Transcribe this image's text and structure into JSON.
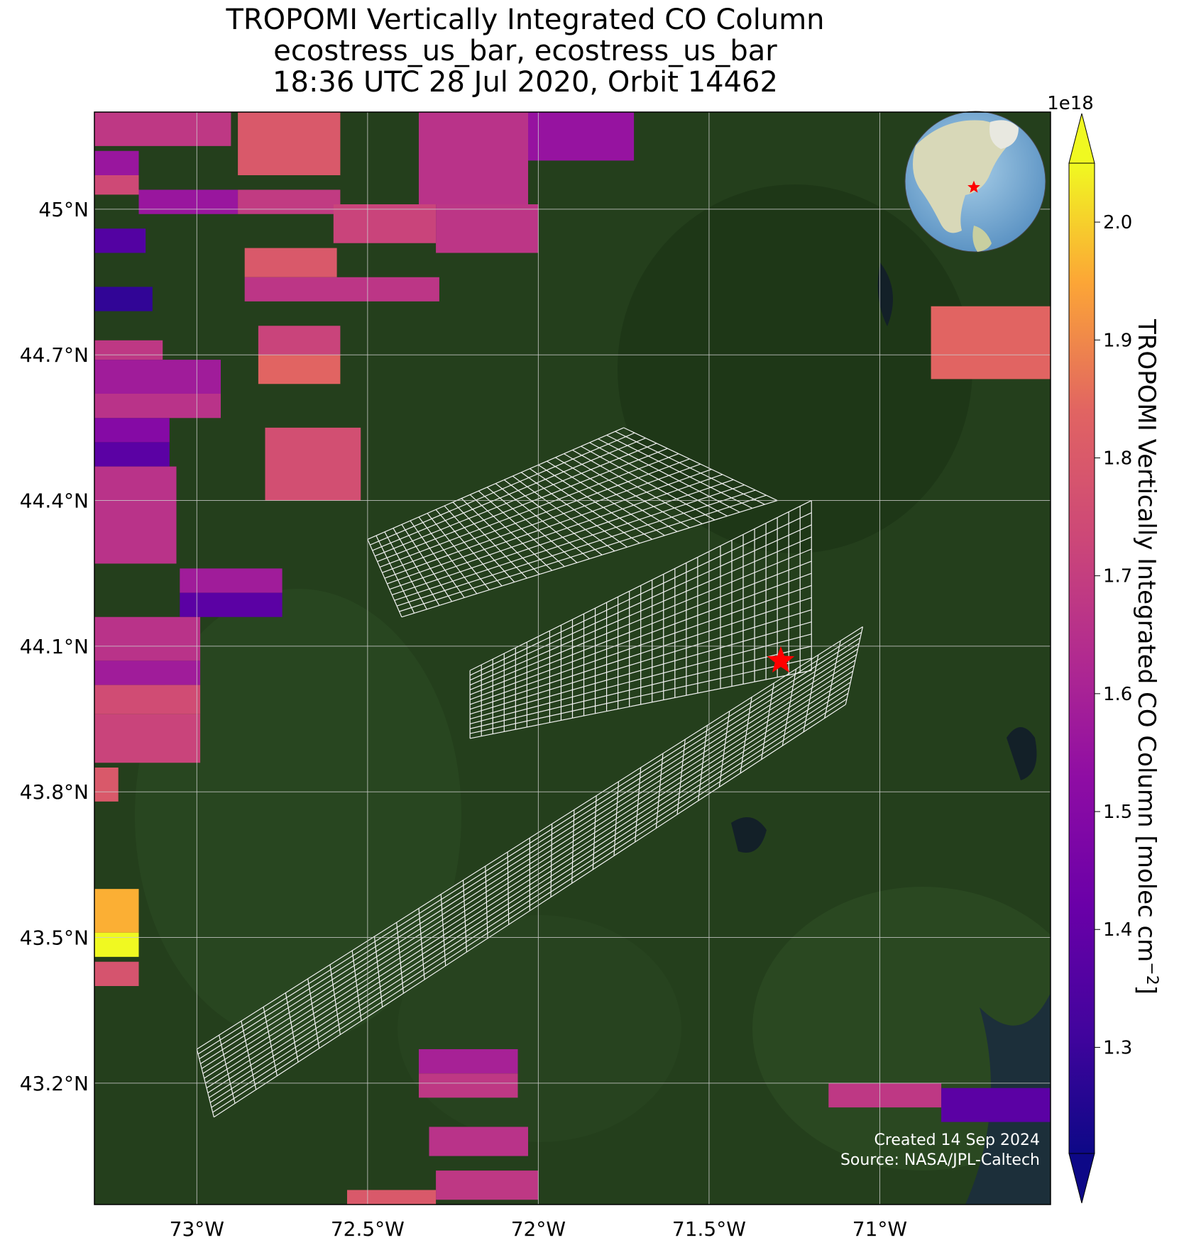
{
  "title": {
    "line1": "TROPOMI Vertically Integrated CO Column",
    "line2": "ecostress_us_bar, ecostress_us_bar",
    "line3": "18:36 UTC 28 Jul 2020, Orbit 14462"
  },
  "map": {
    "lon_range": [
      -73.3,
      -70.5
    ],
    "lat_range": [
      42.95,
      45.2
    ],
    "lon_ticks": [
      {
        "value": -73.0,
        "label": "73°W"
      },
      {
        "value": -72.5,
        "label": "72.5°W"
      },
      {
        "value": -72.0,
        "label": "72°W"
      },
      {
        "value": -71.5,
        "label": "71.5°W"
      },
      {
        "value": -71.0,
        "label": "71°W"
      }
    ],
    "lat_ticks": [
      {
        "value": 45.0,
        "label": "45°N"
      },
      {
        "value": 44.7,
        "label": "44.7°N"
      },
      {
        "value": 44.4,
        "label": "44.4°N"
      },
      {
        "value": 44.1,
        "label": "44.1°N"
      },
      {
        "value": 43.8,
        "label": "43.8°N"
      },
      {
        "value": 43.5,
        "label": "43.5°N"
      },
      {
        "value": 43.2,
        "label": "43.2°N"
      }
    ],
    "background": "satellite imagery (dark green forest)",
    "gridlines": true,
    "site_marker": {
      "lon": -71.29,
      "lat": 44.07,
      "color": "#ff0000",
      "icon": "star"
    },
    "inset_globe": {
      "position": "top-right",
      "marker_color": "#ff0000"
    }
  },
  "colorbar": {
    "label": "TROPOMI Vertically Integrated CO Column [molec cm",
    "label_exp": "−2",
    "label_close": "]",
    "multiplier": "1e18",
    "min": 1.21,
    "max": 2.05,
    "colormap": "plasma",
    "ticks": [
      {
        "value": 1.3,
        "label": "1.3"
      },
      {
        "value": 1.4,
        "label": "1.4"
      },
      {
        "value": 1.5,
        "label": "1.5"
      },
      {
        "value": 1.6,
        "label": "1.6"
      },
      {
        "value": 1.7,
        "label": "1.7"
      },
      {
        "value": 1.8,
        "label": "1.8"
      },
      {
        "value": 1.9,
        "label": "1.9"
      },
      {
        "value": 2.0,
        "label": "2.0"
      }
    ],
    "extend": "both"
  },
  "chart_data": {
    "type": "heatmap",
    "description": "TROPOMI CO column pixels (values x1e18 molec cm-2)",
    "pixels": [
      {
        "lon": [
          -73.3,
          -72.9,
          -72.9,
          -73.3
        ],
        "lat": [
          45.2,
          45.2,
          45.13,
          45.13
        ],
        "value": 1.68
      },
      {
        "lon": [
          -73.3,
          -73.17,
          -73.17,
          -73.3
        ],
        "lat": [
          45.12,
          45.12,
          45.07,
          45.07
        ],
        "value": 1.56
      },
      {
        "lon": [
          -73.3,
          -73.17,
          -73.17,
          -73.3
        ],
        "lat": [
          45.07,
          45.07,
          45.03,
          45.03
        ],
        "value": 1.74
      },
      {
        "lon": [
          -73.17,
          -72.88,
          -72.88,
          -73.17
        ],
        "lat": [
          45.04,
          45.04,
          44.99,
          44.99
        ],
        "value": 1.56
      },
      {
        "lon": [
          -72.88,
          -72.58,
          -72.58,
          -72.88
        ],
        "lat": [
          45.04,
          45.04,
          44.99,
          44.99
        ],
        "value": 1.69
      },
      {
        "lon": [
          -72.88,
          -72.58,
          -72.58,
          -72.88
        ],
        "lat": [
          45.2,
          45.2,
          45.07,
          45.07
        ],
        "value": 1.8
      },
      {
        "lon": [
          -72.6,
          -72.3,
          -72.3,
          -72.6
        ],
        "lat": [
          45.01,
          45.01,
          44.93,
          44.93
        ],
        "value": 1.72
      },
      {
        "lon": [
          -72.3,
          -72.0,
          -72.0,
          -72.3
        ],
        "lat": [
          45.01,
          45.01,
          44.91,
          44.91
        ],
        "value": 1.67
      },
      {
        "lon": [
          -72.35,
          -72.03,
          -72.03,
          -72.35
        ],
        "lat": [
          45.2,
          45.2,
          45.01,
          45.01
        ],
        "value": 1.66
      },
      {
        "lon": [
          -72.03,
          -71.72,
          -71.72,
          -72.03
        ],
        "lat": [
          45.2,
          45.2,
          45.1,
          45.1
        ],
        "value": 1.55
      },
      {
        "lon": [
          -73.3,
          -73.15,
          -73.15,
          -73.3
        ],
        "lat": [
          44.96,
          44.96,
          44.91,
          44.91
        ],
        "value": 1.36
      },
      {
        "lon": [
          -72.86,
          -72.59,
          -72.59,
          -72.86
        ],
        "lat": [
          44.92,
          44.92,
          44.86,
          44.86
        ],
        "value": 1.8
      },
      {
        "lon": [
          -72.86,
          -72.29,
          -72.29,
          -72.86
        ],
        "lat": [
          44.86,
          44.86,
          44.81,
          44.81
        ],
        "value": 1.67
      },
      {
        "lon": [
          -73.3,
          -73.13,
          -73.13,
          -73.3
        ],
        "lat": [
          44.84,
          44.84,
          44.79,
          44.79
        ],
        "value": 1.28
      },
      {
        "lon": [
          -72.82,
          -72.58,
          -72.58,
          -72.82
        ],
        "lat": [
          44.76,
          44.76,
          44.7,
          44.7
        ],
        "value": 1.72
      },
      {
        "lon": [
          -72.82,
          -72.58,
          -72.58,
          -72.82
        ],
        "lat": [
          44.7,
          44.7,
          44.64,
          44.64
        ],
        "value": 1.84
      },
      {
        "lon": [
          -73.3,
          -73.1,
          -73.1,
          -73.3
        ],
        "lat": [
          44.73,
          44.73,
          44.69,
          44.69
        ],
        "value": 1.68
      },
      {
        "lon": [
          -73.3,
          -72.93,
          -72.93,
          -73.3
        ],
        "lat": [
          44.69,
          44.69,
          44.62,
          44.62
        ],
        "value": 1.58
      },
      {
        "lon": [
          -73.3,
          -72.93,
          -72.93,
          -73.3
        ],
        "lat": [
          44.62,
          44.62,
          44.57,
          44.57
        ],
        "value": 1.66
      },
      {
        "lon": [
          -73.3,
          -73.08,
          -73.08,
          -73.3
        ],
        "lat": [
          44.57,
          44.57,
          44.52,
          44.52
        ],
        "value": 1.5
      },
      {
        "lon": [
          -73.3,
          -73.08,
          -73.08,
          -73.3
        ],
        "lat": [
          44.52,
          44.52,
          44.47,
          44.47
        ],
        "value": 1.38
      },
      {
        "lon": [
          -72.8,
          -72.52,
          -72.52,
          -72.8
        ],
        "lat": [
          44.55,
          44.55,
          44.4,
          44.4
        ],
        "value": 1.76
      },
      {
        "lon": [
          -73.3,
          -73.06,
          -73.06,
          -73.3
        ],
        "lat": [
          44.47,
          44.47,
          44.27,
          44.27
        ],
        "value": 1.66
      },
      {
        "lon": [
          -73.05,
          -72.75,
          -72.75,
          -73.05
        ],
        "lat": [
          44.26,
          44.26,
          44.21,
          44.21
        ],
        "value": 1.58
      },
      {
        "lon": [
          -73.05,
          -72.75,
          -72.75,
          -73.05
        ],
        "lat": [
          44.21,
          44.21,
          44.16,
          44.16
        ],
        "value": 1.38
      },
      {
        "lon": [
          -73.3,
          -72.99,
          -72.99,
          -73.3
        ],
        "lat": [
          44.16,
          44.16,
          44.07,
          44.07
        ],
        "value": 1.66
      },
      {
        "lon": [
          -73.3,
          -72.99,
          -72.99,
          -73.3
        ],
        "lat": [
          44.07,
          44.07,
          44.02,
          44.02
        ],
        "value": 1.58
      },
      {
        "lon": [
          -73.3,
          -72.99,
          -72.99,
          -73.3
        ],
        "lat": [
          44.02,
          44.02,
          43.96,
          43.96
        ],
        "value": 1.75
      },
      {
        "lon": [
          -73.3,
          -72.99,
          -72.99,
          -73.3
        ],
        "lat": [
          43.96,
          43.96,
          43.86,
          43.86
        ],
        "value": 1.72
      },
      {
        "lon": [
          -73.3,
          -73.23,
          -73.23,
          -73.3
        ],
        "lat": [
          43.85,
          43.85,
          43.78,
          43.78
        ],
        "value": 1.8
      },
      {
        "lon": [
          -73.3,
          -73.17,
          -73.17,
          -73.3
        ],
        "lat": [
          43.6,
          43.6,
          43.51,
          43.51
        ],
        "value": 1.96
      },
      {
        "lon": [
          -73.3,
          -73.17,
          -73.17,
          -73.3
        ],
        "lat": [
          43.51,
          43.51,
          43.46,
          43.46
        ],
        "value": 2.05
      },
      {
        "lon": [
          -73.3,
          -73.17,
          -73.17,
          -73.3
        ],
        "lat": [
          43.45,
          43.45,
          43.4,
          43.4
        ],
        "value": 1.78
      },
      {
        "lon": [
          -72.35,
          -72.06,
          -72.06,
          -72.35
        ],
        "lat": [
          43.27,
          43.27,
          43.22,
          43.22
        ],
        "value": 1.6
      },
      {
        "lon": [
          -72.35,
          -72.06,
          -72.06,
          -72.35
        ],
        "lat": [
          43.22,
          43.22,
          43.17,
          43.17
        ],
        "value": 1.68
      },
      {
        "lon": [
          -72.32,
          -72.03,
          -72.03,
          -72.32
        ],
        "lat": [
          43.11,
          43.11,
          43.05,
          43.05
        ],
        "value": 1.66
      },
      {
        "lon": [
          -72.3,
          -72.0,
          -72.0,
          -72.3
        ],
        "lat": [
          43.02,
          43.02,
          42.96,
          42.96
        ],
        "value": 1.68
      },
      {
        "lon": [
          -72.56,
          -72.3,
          -72.3,
          -72.56
        ],
        "lat": [
          42.98,
          42.98,
          42.95,
          42.95
        ],
        "value": 1.8
      },
      {
        "lon": [
          -70.85,
          -70.5,
          -70.5,
          -70.85
        ],
        "lat": [
          44.8,
          44.8,
          44.65,
          44.65
        ],
        "value": 1.84
      },
      {
        "lon": [
          -71.15,
          -70.82,
          -70.82,
          -71.15
        ],
        "lat": [
          43.2,
          43.2,
          43.15,
          43.15
        ],
        "value": 1.68
      },
      {
        "lon": [
          -70.82,
          -70.5,
          -70.5,
          -70.82
        ],
        "lat": [
          43.19,
          43.19,
          43.12,
          43.12
        ],
        "value": 1.38
      }
    ],
    "swath_outlines": [
      {
        "lon": [
          -72.5,
          -71.75,
          -71.3,
          -71.5,
          -72.4
        ],
        "lat": [
          44.32,
          44.55,
          44.4,
          44.2,
          44.16
        ]
      },
      {
        "lon": [
          -72.2,
          -71.2,
          -71.2,
          -72.2
        ],
        "lat": [
          44.05,
          44.4,
          44.05,
          43.91
        ]
      },
      {
        "lon": [
          -73.0,
          -71.05,
          -71.1,
          -72.95
        ],
        "lat": [
          43.27,
          44.14,
          43.98,
          43.13
        ]
      }
    ]
  },
  "credit": {
    "created": "Created 14 Sep 2024",
    "source": "Source: NASA/JPL-Caltech"
  }
}
